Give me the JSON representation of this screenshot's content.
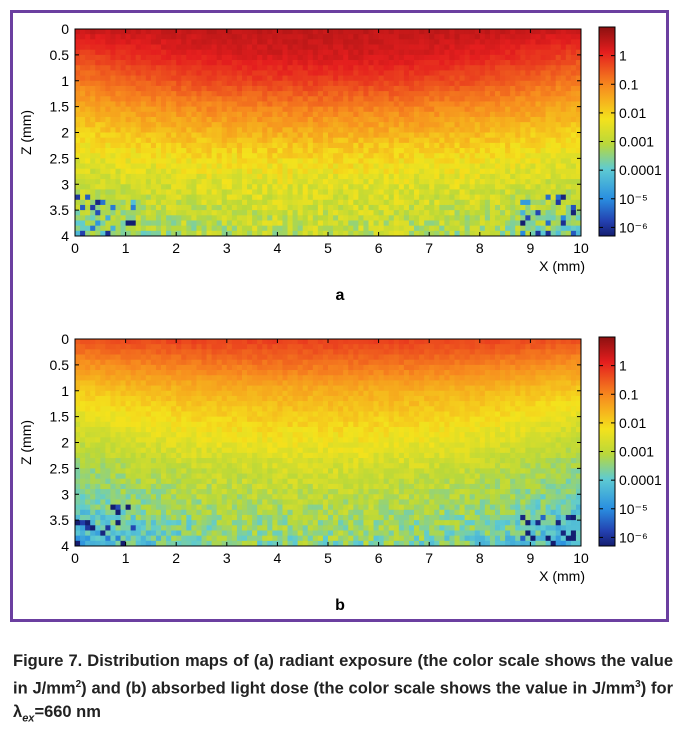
{
  "chart_data": [
    {
      "type": "heatmap",
      "panel_label": "a",
      "xlabel": "X (mm)",
      "ylabel": "Z (mm)",
      "xlim": [
        0,
        10
      ],
      "ylim": [
        0,
        4
      ],
      "x_ticks": [
        "0",
        "1",
        "2",
        "3",
        "4",
        "5",
        "6",
        "7",
        "8",
        "9",
        "10"
      ],
      "y_ticks": [
        "0",
        "0.5",
        "1",
        "1.5",
        "2",
        "2.5",
        "3",
        "3.5",
        "4"
      ],
      "colorbar_ticks": [
        "1",
        "0.1",
        "0.01",
        "0.001",
        "0.0001",
        "10⁻⁵",
        "10⁻⁶"
      ],
      "colorscale": "log",
      "z_profile_log10": [
        {
          "z": 0,
          "center": 0.5,
          "edge": 0.4
        },
        {
          "z": 0.5,
          "center": 0.3,
          "edge": -0.3
        },
        {
          "z": 1,
          "center": -0.2,
          "edge": -0.9
        },
        {
          "z": 1.5,
          "center": -0.9,
          "edge": -1.5
        },
        {
          "z": 2,
          "center": -1.5,
          "edge": -2.0
        },
        {
          "z": 2.5,
          "center": -2.1,
          "edge": -2.5
        },
        {
          "z": 3,
          "center": -2.5,
          "edge": -2.9
        },
        {
          "z": 3.5,
          "center": -2.8,
          "edge": -3.3
        },
        {
          "z": 4,
          "center": -3.0,
          "edge": -3.8
        }
      ]
    },
    {
      "type": "heatmap",
      "panel_label": "b",
      "xlabel": "X (mm)",
      "ylabel": "Z (mm)",
      "xlim": [
        0,
        10
      ],
      "ylim": [
        0,
        4
      ],
      "x_ticks": [
        "0",
        "1",
        "2",
        "3",
        "4",
        "5",
        "6",
        "7",
        "8",
        "9",
        "10"
      ],
      "y_ticks": [
        "0",
        "0.5",
        "1",
        "1.5",
        "2",
        "2.5",
        "3",
        "3.5",
        "4"
      ],
      "colorbar_ticks": [
        "1",
        "0.1",
        "0.01",
        "0.001",
        "0.0001",
        "10⁻⁵",
        "10⁻⁶"
      ],
      "colorscale": "log",
      "z_profile_log10": [
        {
          "z": 0,
          "center": -0.2,
          "edge": -0.4
        },
        {
          "z": 0.5,
          "center": -0.8,
          "edge": -1.2
        },
        {
          "z": 1,
          "center": -1.5,
          "edge": -1.9
        },
        {
          "z": 1.5,
          "center": -1.9,
          "edge": -2.5
        },
        {
          "z": 2,
          "center": -2.3,
          "edge": -3.0
        },
        {
          "z": 2.5,
          "center": -2.7,
          "edge": -3.4
        },
        {
          "z": 3,
          "center": -3.0,
          "edge": -3.7
        },
        {
          "z": 3.5,
          "center": -3.3,
          "edge": -4.1
        },
        {
          "z": 4,
          "center": -3.5,
          "edge": -4.5
        }
      ]
    }
  ],
  "caption": {
    "prefix": "Figure 7. Distribution maps of (a) radiant exposure (the color scale shows the value in J/mm",
    "sup1": "2",
    "mid": ") and (b) absorbed light dose (the color scale shows the value in J/mm",
    "sup2": "3",
    "mid2": ") for λ",
    "sub": "ex",
    "suffix": "=660 nm"
  },
  "colors": {
    "frame": "#6b3fa0",
    "high": "#e41e1e",
    "low": "#1b2a8c"
  }
}
